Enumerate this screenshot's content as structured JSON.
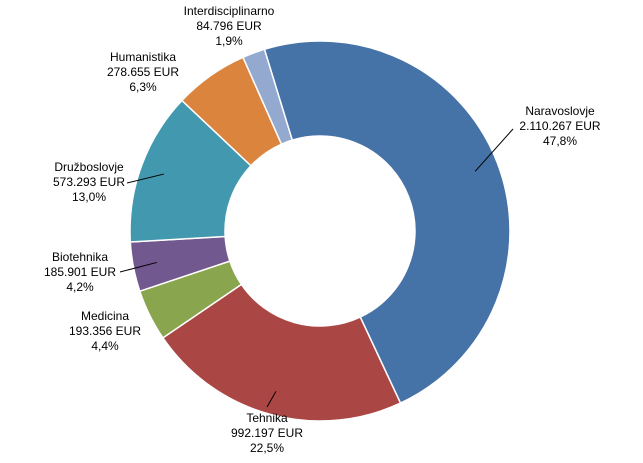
{
  "chart_data": {
    "type": "donut",
    "slices": [
      {
        "name": "Naravoslovje",
        "value": 2110267,
        "amount_label": "2.110.267 EUR",
        "percent_label": "47,8%",
        "color": "#4572A7"
      },
      {
        "name": "Tehnika",
        "value": 992197,
        "amount_label": "992.197 EUR",
        "percent_label": "22,5%",
        "color": "#AA4643"
      },
      {
        "name": "Medicina",
        "value": 193356,
        "amount_label": "193.356 EUR",
        "percent_label": "4,4%",
        "color": "#89A54E"
      },
      {
        "name": "Biotehnika",
        "value": 185901,
        "amount_label": "185.901 EUR",
        "percent_label": "4,2%",
        "color": "#71588F"
      },
      {
        "name": "Družboslovje",
        "value": 573293,
        "amount_label": "573.293 EUR",
        "percent_label": "13,0%",
        "color": "#4198AF"
      },
      {
        "name": "Humanistika",
        "value": 278655,
        "amount_label": "278.655 EUR",
        "percent_label": "6,3%",
        "color": "#DB843D"
      },
      {
        "name": "Interdisciplinarno",
        "value": 84796,
        "amount_label": "84.796 EUR",
        "percent_label": "1,9%",
        "color": "#93A9CF"
      }
    ],
    "start_angle_deg": -17,
    "direction": "clockwise",
    "legend": "none",
    "data_labels": "outside with leader lines"
  }
}
